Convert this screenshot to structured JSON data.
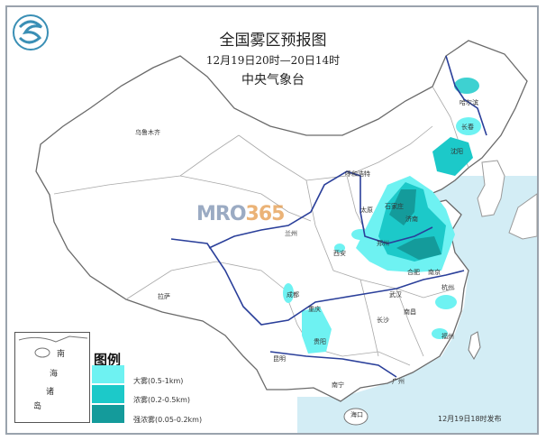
{
  "header": {
    "title": "全国雾区预报图",
    "period": "12月19日20时—20日14时",
    "issuer": "中央气象台"
  },
  "logo": {
    "icon": "cma-logo-icon"
  },
  "legend": {
    "title": "图例",
    "items": [
      {
        "label": "大雾(0.5-1km)",
        "color": "#6ef2f2"
      },
      {
        "label": "浓雾(0.2-0.5km)",
        "color": "#1cc9c9"
      },
      {
        "label": "强浓雾(0.05-0.2km)",
        "color": "#149b9b"
      }
    ]
  },
  "inset": {
    "label_chars": [
      "南",
      "海",
      "诸",
      "岛"
    ]
  },
  "cities": [
    {
      "name": "乌鲁木齐"
    },
    {
      "name": "拉萨"
    },
    {
      "name": "兰州"
    },
    {
      "name": "呼和浩特"
    },
    {
      "name": "太原"
    },
    {
      "name": "石家庄"
    },
    {
      "name": "济南"
    },
    {
      "name": "郑州"
    },
    {
      "name": "西安"
    },
    {
      "name": "合肥"
    },
    {
      "name": "南京"
    },
    {
      "name": "杭州"
    },
    {
      "name": "成都"
    },
    {
      "name": "重庆"
    },
    {
      "name": "贵阳"
    },
    {
      "name": "昆明"
    },
    {
      "name": "长沙"
    },
    {
      "name": "南昌"
    },
    {
      "name": "福州"
    },
    {
      "name": "南宁"
    },
    {
      "name": "广州"
    },
    {
      "name": "海口"
    },
    {
      "name": "哈尔滨"
    },
    {
      "name": "长春"
    },
    {
      "name": "沈阳"
    },
    {
      "name": "武汉"
    }
  ],
  "footer": {
    "issued": "12月19日18时发布"
  },
  "watermark": {
    "main": "MRO",
    "accent": "365"
  },
  "colors": {
    "sea": "#d3edf5",
    "river": "#2a3f9a",
    "border": "#9a9a9a"
  }
}
